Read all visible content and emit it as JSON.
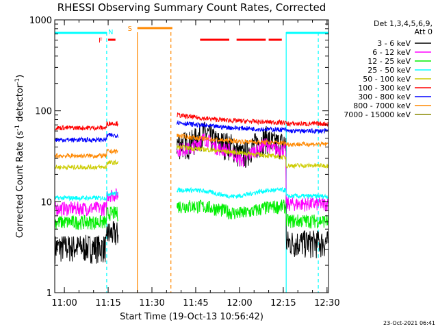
{
  "chart_data": {
    "type": "line",
    "title": "RHESSI Observing Summary Count Rates, Corrected",
    "xlabel": "Start Time (19-Oct-13 10:56:42)",
    "ylabel_prefix": "Corrected Count Rate (s",
    "ylabel_sup1": "-1",
    "ylabel_mid": " detector",
    "ylabel_sup2": "-1",
    "ylabel_suffix": ")",
    "x_start_min": 656.7,
    "x_end_min": 750.5,
    "y_scale": "log",
    "ylim": [
      1,
      1000
    ],
    "x_ticks": [
      {
        "min": 660,
        "label": "11:00"
      },
      {
        "min": 675,
        "label": "11:15"
      },
      {
        "min": 690,
        "label": "11:30"
      },
      {
        "min": 705,
        "label": "11:45"
      },
      {
        "min": 720,
        "label": "12:00"
      },
      {
        "min": 735,
        "label": "12:15"
      },
      {
        "min": 750,
        "label": "12:30"
      }
    ],
    "y_ticks": [
      {
        "val": 1,
        "label": "1"
      },
      {
        "val": 10,
        "label": "10"
      },
      {
        "val": 100,
        "label": "100"
      },
      {
        "val": 1000,
        "label": "1000"
      }
    ],
    "legend_header": [
      "Det 1,3,4,5,6,9,",
      "Att 0"
    ],
    "series": [
      {
        "name": "3 - 6 keV",
        "color": "#000000",
        "pre": 3.2,
        "post_base": 3.4,
        "peaks": true
      },
      {
        "name": "6 - 12 keV",
        "color": "#ff00ff",
        "pre": 8.5,
        "post_base": 8.6,
        "peaks": true
      },
      {
        "name": "12 - 25 keV",
        "color": "#00ee00",
        "pre": 6.0,
        "post_base": 6.0,
        "peaks": false
      },
      {
        "name": "25 - 50 keV",
        "color": "#00ffff",
        "pre": 11.0,
        "post_base": 11.5,
        "peaks": false
      },
      {
        "name": "50 - 100 keV",
        "color": "#cccc00",
        "pre": 24.0,
        "post_base": 25.0,
        "peaks": false
      },
      {
        "name": "100 - 300 keV",
        "color": "#ff0000",
        "pre": 65.0,
        "post_base": 72.0,
        "peaks": false
      },
      {
        "name": "300 - 800 keV",
        "color": "#0000ff",
        "pre": 48.0,
        "post_base": 60.0,
        "peaks": false
      },
      {
        "name": "800 - 7000 keV",
        "color": "#ff8800",
        "pre": 32.0,
        "post_base": 43.0,
        "peaks": false
      },
      {
        "name": "7000 - 15000 keV",
        "color": "#888800",
        "pre": 0,
        "post_base": 0,
        "peaks": false
      }
    ],
    "flags": {
      "night_bar": [
        {
          "start": 656.7,
          "end": 674.5,
          "label": "N"
        },
        {
          "start": 736.0,
          "end": 750.5,
          "label": ""
        }
      ],
      "saa_bar": [
        {
          "start": 685.0,
          "end": 697.0,
          "label": "S"
        }
      ],
      "flare_bar": [
        {
          "start": 675.0,
          "end": 677.5,
          "label": "F"
        },
        {
          "start": 706.5,
          "end": 716.5,
          "label": ""
        },
        {
          "start": 719.0,
          "end": 729.0,
          "label": ""
        },
        {
          "start": 730.0,
          "end": 734.5,
          "label": ""
        }
      ]
    },
    "vlines": [
      {
        "min": 674.5,
        "color": "#00ffff",
        "dash": true
      },
      {
        "min": 685.0,
        "color": "#ff8800",
        "dash": false
      },
      {
        "min": 696.5,
        "color": "#ff8800",
        "dash": true
      },
      {
        "min": 736.0,
        "color": "#00ffff",
        "dash": false
      },
      {
        "min": 747.0,
        "color": "#00ffff",
        "dash": true
      }
    ],
    "data_gap": [
      678.5,
      698.5
    ]
  },
  "footer": {
    "date": "23-Oct-2021 06:41"
  }
}
